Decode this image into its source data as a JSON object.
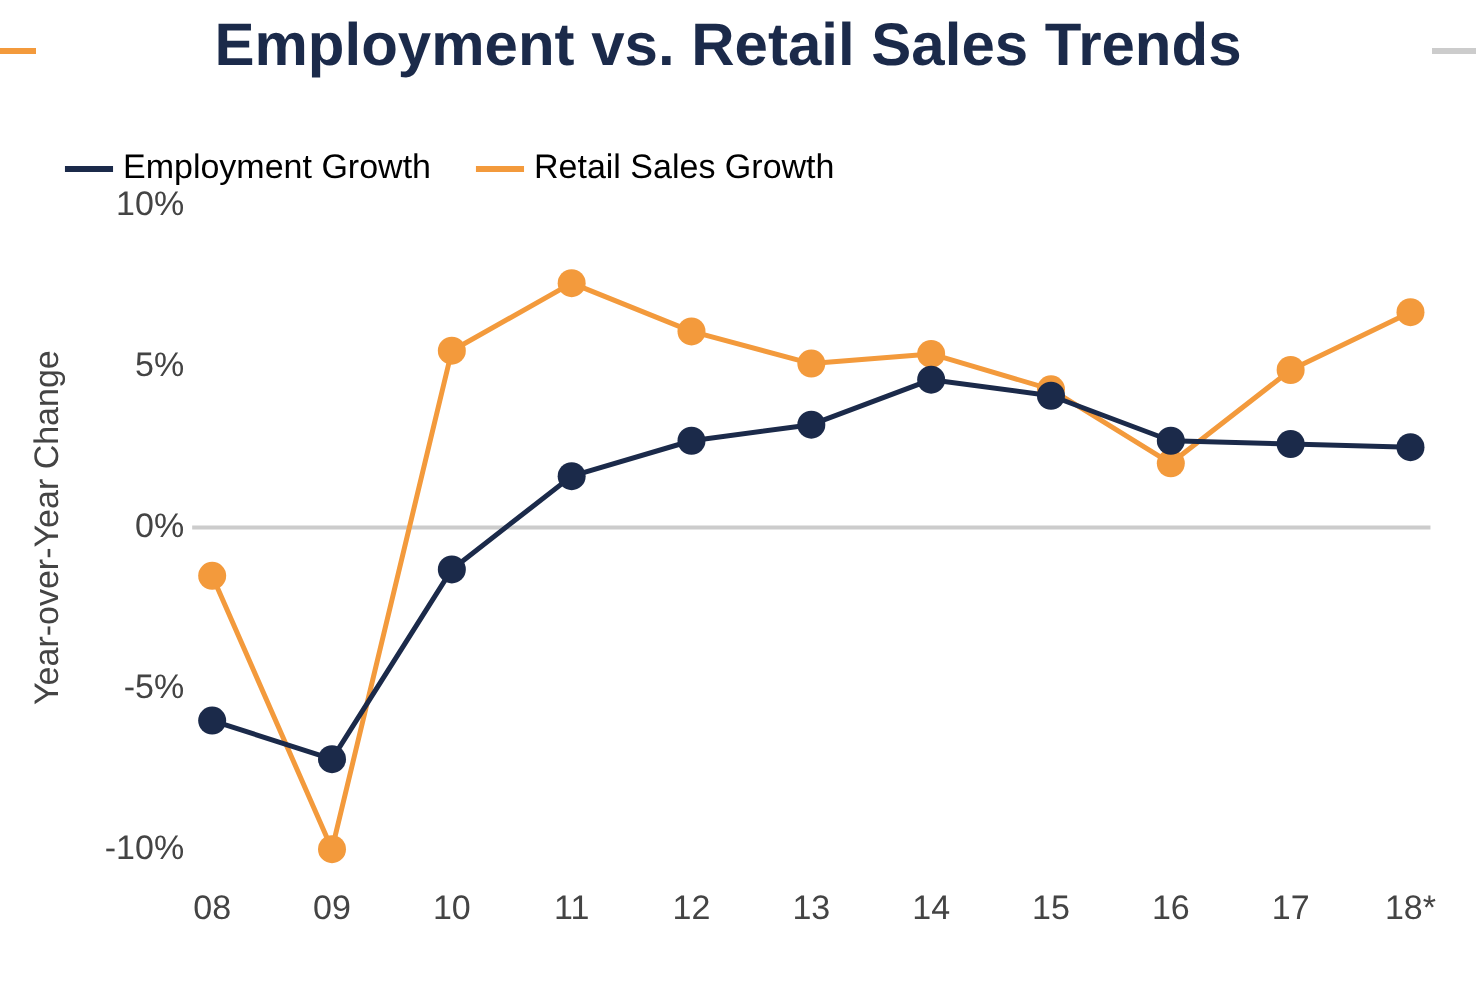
{
  "chart_data": {
    "type": "line",
    "title": "Employment vs. Retail Sales Trends",
    "ylabel": "Year-over-Year Change",
    "categories": [
      "08",
      "09",
      "10",
      "11",
      "12",
      "13",
      "14",
      "15",
      "16",
      "17",
      "18*"
    ],
    "series": [
      {
        "name": "Employment Growth",
        "color": "#1b2a4a",
        "values": [
          -6.0,
          -7.2,
          -1.3,
          1.6,
          2.7,
          3.2,
          4.6,
          4.1,
          2.7,
          2.6,
          2.5
        ]
      },
      {
        "name": "Retail Sales Growth",
        "color": "#f39a3c",
        "values": [
          -1.5,
          -10.0,
          5.5,
          7.6,
          6.1,
          5.1,
          5.4,
          4.3,
          2.0,
          4.9,
          6.7
        ]
      }
    ],
    "ylim": [
      -10,
      10
    ],
    "yticks": [
      {
        "value": 10,
        "label": "10%"
      },
      {
        "value": 5,
        "label": "5%"
      },
      {
        "value": 0,
        "label": "0%"
      },
      {
        "value": -5,
        "label": "-5%"
      },
      {
        "value": -10,
        "label": "-10%"
      }
    ],
    "ref_lines": [
      {
        "axis": "y",
        "value": 0,
        "color": "#cccccc"
      }
    ],
    "grid": false,
    "legend": "top left",
    "marker": "circle",
    "line_style": "solid"
  }
}
